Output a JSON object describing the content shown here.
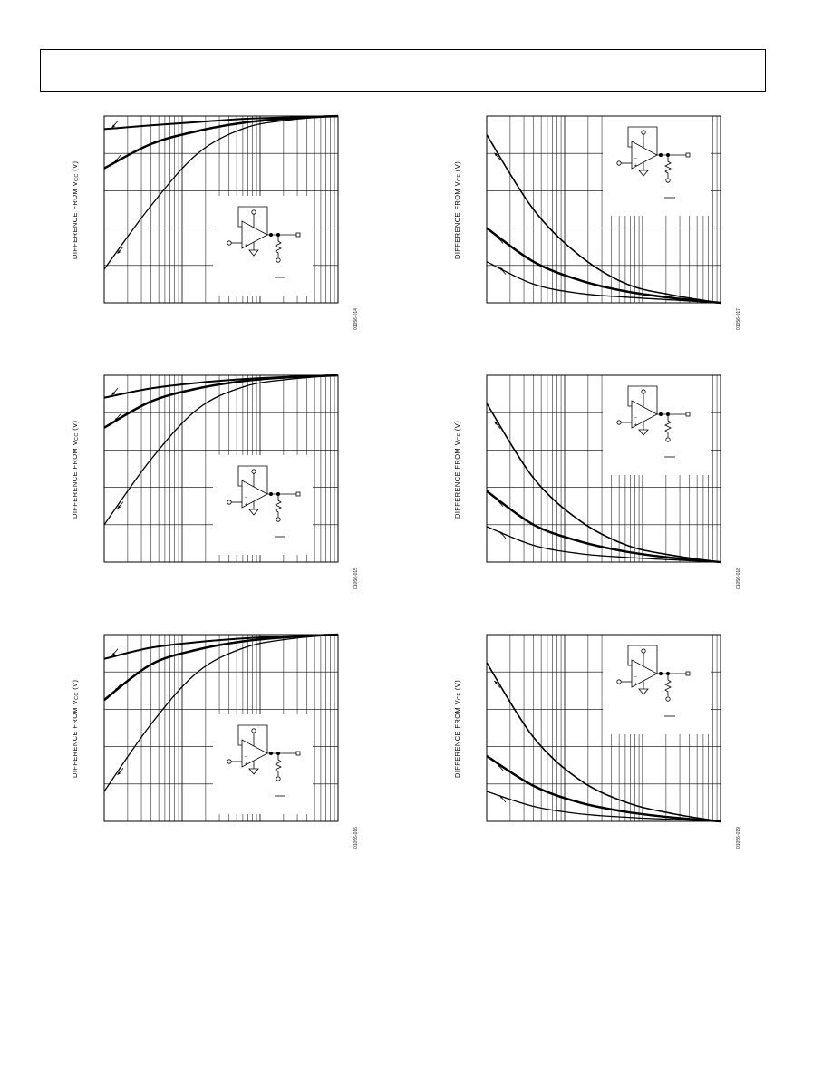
{
  "page": {
    "header_text": ""
  },
  "colors": {
    "line": "#000000",
    "grid": "#000000",
    "background": "#ffffff"
  },
  "chart_data": [
    {
      "type": "line",
      "ylabel_prefix": "DIFFERENCE FROM V",
      "ylabel_sub": "CC",
      "ylabel_suffix": " (V)",
      "figure_code": "01056-014",
      "x_scale": "log",
      "series": [
        {
          "values": [
            0.93,
            0.95,
            0.968,
            0.985,
            0.993,
            1.0
          ],
          "stroke": 2.0
        },
        {
          "values": [
            0.72,
            0.85,
            0.92,
            0.965,
            0.988,
            1.0
          ],
          "stroke": 2.5
        },
        {
          "values": [
            0.18,
            0.52,
            0.8,
            0.935,
            0.98,
            1.0
          ],
          "stroke": 1.3
        }
      ]
    },
    {
      "type": "line",
      "ylabel_prefix": "DIFFERENCE FROM V",
      "ylabel_sub": "CE",
      "ylabel_suffix": " (V)",
      "figure_code": "01056-017",
      "x_scale": "log",
      "series": [
        {
          "values": [
            0.9,
            0.5,
            0.25,
            0.1,
            0.04,
            0.0
          ],
          "stroke": 1.6
        },
        {
          "values": [
            0.4,
            0.22,
            0.12,
            0.06,
            0.025,
            0.0
          ],
          "stroke": 2.5
        },
        {
          "values": [
            0.22,
            0.1,
            0.05,
            0.03,
            0.015,
            0.0
          ],
          "stroke": 1.3
        }
      ]
    },
    {
      "type": "line",
      "ylabel_prefix": "DIFFERENCE FROM V",
      "ylabel_sub": "CC",
      "ylabel_suffix": " (V)",
      "figure_code": "01056-015",
      "x_scale": "log",
      "series": [
        {
          "values": [
            0.88,
            0.93,
            0.96,
            0.98,
            0.992,
            1.0
          ],
          "stroke": 2.0
        },
        {
          "values": [
            0.72,
            0.86,
            0.93,
            0.97,
            0.99,
            1.0
          ],
          "stroke": 2.5
        },
        {
          "values": [
            0.2,
            0.55,
            0.82,
            0.94,
            0.98,
            1.0
          ],
          "stroke": 1.3
        }
      ]
    },
    {
      "type": "line",
      "ylabel_prefix": "DIFFERENCE FROM V",
      "ylabel_sub": "CE",
      "ylabel_suffix": " (V)",
      "figure_code": "01056-018",
      "x_scale": "log",
      "series": [
        {
          "values": [
            0.85,
            0.45,
            0.22,
            0.09,
            0.035,
            0.0
          ],
          "stroke": 1.6
        },
        {
          "values": [
            0.38,
            0.2,
            0.11,
            0.055,
            0.022,
            0.0
          ],
          "stroke": 2.5
        },
        {
          "values": [
            0.19,
            0.09,
            0.045,
            0.025,
            0.012,
            0.0
          ],
          "stroke": 1.3
        }
      ]
    },
    {
      "type": "line",
      "ylabel_prefix": "DIFFERENCE FROM V",
      "ylabel_sub": "CC",
      "ylabel_suffix": " (V)",
      "figure_code": "01056-016",
      "x_scale": "log",
      "series": [
        {
          "values": [
            0.87,
            0.93,
            0.96,
            0.98,
            0.992,
            1.0
          ],
          "stroke": 2.0
        },
        {
          "values": [
            0.65,
            0.84,
            0.92,
            0.965,
            0.988,
            1.0
          ],
          "stroke": 2.5
        },
        {
          "values": [
            0.16,
            0.52,
            0.8,
            0.93,
            0.978,
            1.0
          ],
          "stroke": 1.3
        }
      ]
    },
    {
      "type": "line",
      "ylabel_prefix": "DIFFERENCE FROM V",
      "ylabel_sub": "CE",
      "ylabel_suffix": " (V)",
      "figure_code": "01056-019",
      "x_scale": "log",
      "series": [
        {
          "values": [
            0.85,
            0.45,
            0.22,
            0.1,
            0.04,
            0.0
          ],
          "stroke": 1.6
        },
        {
          "values": [
            0.35,
            0.19,
            0.1,
            0.05,
            0.02,
            0.0
          ],
          "stroke": 2.5
        },
        {
          "values": [
            0.16,
            0.08,
            0.04,
            0.022,
            0.01,
            0.0
          ],
          "stroke": 1.3
        }
      ]
    }
  ]
}
